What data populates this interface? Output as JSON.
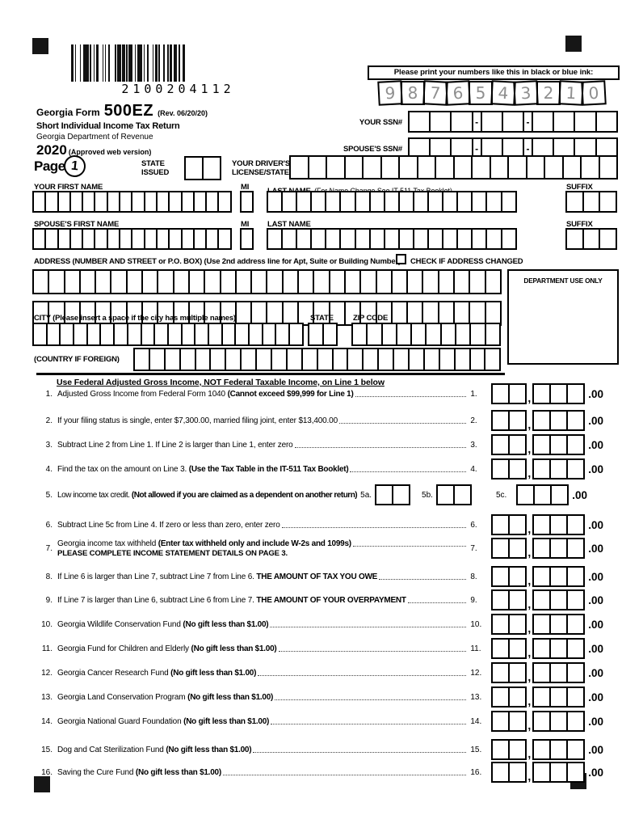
{
  "barcode": {
    "value": "2100204112"
  },
  "print_hint": {
    "label": "Please print your numbers like this in black or blue ink:",
    "sample_digits": "9876543210"
  },
  "header": {
    "form_prefix": "Georgia Form",
    "form_number": "500EZ",
    "revision": "(Rev. 06/20/20)",
    "subtitle": "Short Individual Income Tax Return",
    "department": "Georgia Department of Revenue",
    "year": "2020",
    "year_note": "(Approved web version)",
    "page_label": "Page",
    "page_number": "1"
  },
  "id_fields": {
    "your_ssn_label": "YOUR SSN#",
    "spouse_ssn_label": "SPOUSE'S SSN#",
    "state_issued_label": "STATE\nISSUED",
    "drivers_license_label": "YOUR DRIVER'S\nLICENSE/STATE ID"
  },
  "name_fields": {
    "first_name_label": "YOUR FIRST NAME",
    "mi_label": "MI",
    "last_name_label": "LAST NAME",
    "last_name_note": "(For Name Change See IT-511 Tax Booklet)",
    "suffix_label": "SUFFIX",
    "spouse_first_name_label": "SPOUSE'S FIRST NAME",
    "spouse_mi_label": "MI",
    "spouse_last_name_label": "LAST NAME",
    "spouse_suffix_label": "SUFFIX"
  },
  "address_fields": {
    "address_label": "ADDRESS (NUMBER AND STREET or P.O. BOX) (Use 2nd address line for Apt, Suite or Building Number)",
    "address_changed_label": "CHECK IF ADDRESS CHANGED",
    "department_use_label": "DEPARTMENT USE ONLY",
    "city_label": "CITY (Please insert a space if the city has multiple names)",
    "state_label": "STATE",
    "zip_label": "ZIP CODE",
    "country_label": "(COUNTRY IF FOREIGN)"
  },
  "instruction": "Use Federal Adjusted Gross Income, NOT Federal Taxable Income, on Line 1 below",
  "amount_suffix": ".00",
  "lines": [
    {
      "num": "1.",
      "text": "Adjusted Gross Income from Federal Form 1040 ",
      "bold": "(Cannot exceed $99,999 for Line 1)",
      "ref": "1."
    },
    {
      "num": "2.",
      "text": "If your filing status is single, enter $7,300.00, married filing joint, enter $13,400.00",
      "bold": "",
      "ref": "2."
    },
    {
      "num": "3.",
      "text": "Subtract Line 2 from Line 1. If Line 2 is larger than Line 1, enter zero",
      "bold": "",
      "ref": "3."
    },
    {
      "num": "4.",
      "text": "Find the tax on the amount on Line 3. ",
      "bold": "(Use the Tax Table in the IT-511 Tax Booklet)",
      "ref": "4."
    },
    {
      "num": "5.",
      "text": "Low income tax credit. ",
      "bold": "(Not allowed if you are claimed as a dependent on another return)",
      "sub_a": "5a.",
      "sub_b": "5b.",
      "ref": "5c."
    },
    {
      "num": "6.",
      "text": "Subtract Line 5c from Line 4. If zero or less than zero, enter zero",
      "bold": "",
      "ref": "6."
    },
    {
      "num": "7.",
      "text": "Georgia income tax withheld ",
      "bold": "(Enter tax withheld only and include W-2s and 1099s)",
      "note": "PLEASE COMPLETE INCOME STATEMENT DETAILS ON PAGE 3.",
      "ref": "7."
    },
    {
      "num": "8.",
      "text": "If Line 6 is larger than Line 7, subtract Line 7 from Line 6. ",
      "bold": "THE AMOUNT OF TAX YOU OWE",
      "ref": "8."
    },
    {
      "num": "9.",
      "text": "If Line 7 is larger than Line 6, subtract Line 6 from Line 7. ",
      "bold": "THE AMOUNT OF YOUR OVERPAYMENT",
      "ref": "9."
    },
    {
      "num": "10.",
      "text": "Georgia Wildlife Conservation Fund ",
      "bold": "(No gift less than $1.00)",
      "ref": "10."
    },
    {
      "num": "11.",
      "text": "Georgia Fund for Children and Elderly ",
      "bold": "(No gift less than $1.00)",
      "ref": "11."
    },
    {
      "num": "12.",
      "text": "Georgia Cancer Research Fund ",
      "bold": "(No gift less than $1.00)",
      "ref": "12."
    },
    {
      "num": "13.",
      "text": "Georgia Land Conservation Program ",
      "bold": "(No gift less than $1.00)",
      "ref": "13."
    },
    {
      "num": "14.",
      "text": "Georgia National Guard Foundation ",
      "bold": "(No gift less than $1.00)",
      "ref": "14."
    },
    {
      "num": "15.",
      "text": "Dog and Cat Sterilization Fund ",
      "bold": "(No gift less than $1.00)",
      "ref": "15."
    },
    {
      "num": "16.",
      "text": "Saving the Cure Fund ",
      "bold": "(No gift less than $1.00)",
      "ref": "16."
    }
  ]
}
